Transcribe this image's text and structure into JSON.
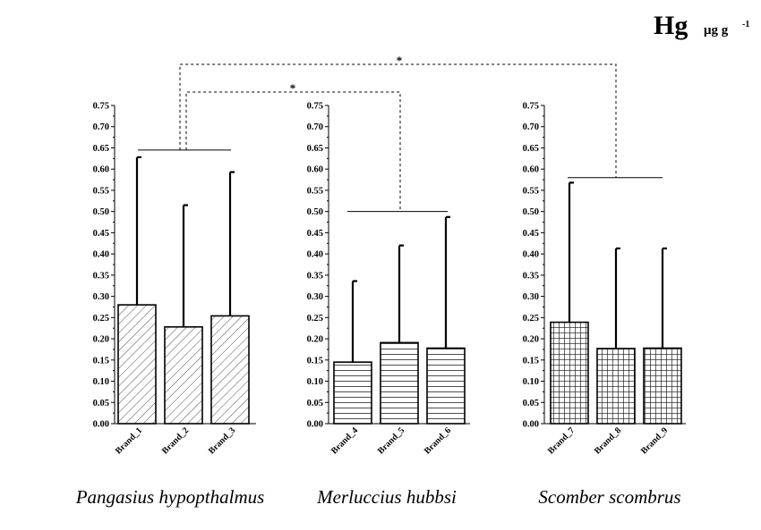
{
  "chart_data": {
    "type": "bar",
    "title": "Hg",
    "unit": "μg g",
    "unit_exponent": "-1",
    "ylim": [
      0,
      0.75
    ],
    "yticks": [
      "0.00",
      "0.05",
      "0.10",
      "0.15",
      "0.20",
      "0.25",
      "0.30",
      "0.35",
      "0.40",
      "0.45",
      "0.50",
      "0.55",
      "0.60",
      "0.65",
      "0.70",
      "0.75"
    ],
    "panels": [
      {
        "species": "Pangasius hypopthalmus",
        "pattern": "diagonal-hatch",
        "categories": [
          "Brand_1",
          "Brand_2",
          "Brand_3"
        ],
        "values": [
          0.28,
          0.228,
          0.254
        ],
        "error_upper": [
          0.628,
          0.515,
          0.593
        ],
        "group_line": 0.645
      },
      {
        "species": "Merluccius hubbsi",
        "pattern": "horizontal-lines",
        "categories": [
          "Brand_4",
          "Brand_5",
          "Brand_6"
        ],
        "values": [
          0.145,
          0.191,
          0.178
        ],
        "error_upper": [
          0.336,
          0.42,
          0.487
        ],
        "group_line": 0.5
      },
      {
        "species": "Scomber scombrus",
        "pattern": "grid",
        "categories": [
          "Brand_7",
          "Brand_8",
          "Brand_9"
        ],
        "values": [
          0.239,
          0.177,
          0.178
        ],
        "error_upper": [
          0.568,
          0.413,
          0.413
        ],
        "group_line": 0.58
      }
    ],
    "significance": [
      {
        "from_panel": 0,
        "to_panel": 1,
        "label": "*"
      },
      {
        "from_panel": 0,
        "to_panel": 2,
        "label": "*"
      }
    ]
  }
}
